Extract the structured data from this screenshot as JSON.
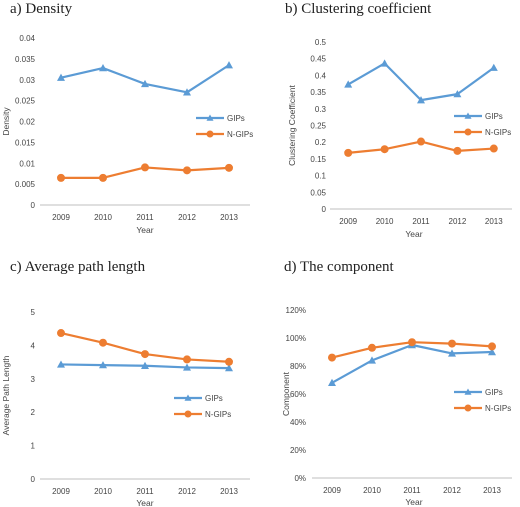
{
  "colors": {
    "GIPs": "#5b9bd5",
    "N-GIPs": "#ed7d31"
  },
  "chart_data": [
    {
      "type": "line",
      "title": "a) Density",
      "xlabel": "Year",
      "ylabel": "Density",
      "categories": [
        "2009",
        "2010",
        "2011",
        "2012",
        "2013"
      ],
      "ylim": [
        0,
        0.04
      ],
      "yticks": [
        "0",
        "0.005",
        "0.01",
        "0.015",
        "0.02",
        "0.025",
        "0.03",
        "0.035",
        "0.04"
      ],
      "ytick_values": [
        0,
        0.005,
        0.01,
        0.015,
        0.02,
        0.025,
        0.03,
        0.035,
        0.04
      ],
      "legend_position": "right",
      "series": [
        {
          "name": "GIPs",
          "marker": "triangle",
          "values": [
            0.0305,
            0.0328,
            0.029,
            0.027,
            0.0335
          ]
        },
        {
          "name": "N-GIPs",
          "marker": "circle",
          "values": [
            0.0065,
            0.0065,
            0.009,
            0.0083,
            0.0089
          ]
        }
      ]
    },
    {
      "type": "line",
      "title": "b) Clustering coefficient",
      "xlabel": "Year",
      "ylabel": "Clustering Coefficient",
      "categories": [
        "2009",
        "2010",
        "2011",
        "2012",
        "2013"
      ],
      "ylim": [
        0,
        0.5
      ],
      "yticks": [
        "0",
        "0.05",
        "0.1",
        "0.15",
        "0.2",
        "0.25",
        "0.3",
        "0.35",
        "0.4",
        "0.45",
        "0.5"
      ],
      "ytick_values": [
        0,
        0.05,
        0.1,
        0.15,
        0.2,
        0.25,
        0.3,
        0.35,
        0.4,
        0.45,
        0.5
      ],
      "legend_position": "right",
      "series": [
        {
          "name": "GIPs",
          "marker": "triangle",
          "values": [
            0.373,
            0.436,
            0.326,
            0.344,
            0.423
          ]
        },
        {
          "name": "N-GIPs",
          "marker": "circle",
          "values": [
            0.168,
            0.179,
            0.202,
            0.174,
            0.181
          ]
        }
      ]
    },
    {
      "type": "line",
      "title": "c) Average path length",
      "xlabel": "Year",
      "ylabel": "Average Path Length",
      "categories": [
        "2009",
        "2010",
        "2011",
        "2012",
        "2013"
      ],
      "ylim": [
        0,
        5
      ],
      "yticks": [
        "0",
        "1",
        "2",
        "3",
        "4",
        "5"
      ],
      "ytick_values": [
        0,
        1,
        2,
        3,
        4,
        5
      ],
      "legend_position": "right",
      "series": [
        {
          "name": "GIPs",
          "marker": "triangle",
          "values": [
            3.43,
            3.41,
            3.39,
            3.34,
            3.32
          ]
        },
        {
          "name": "N-GIPs",
          "marker": "circle",
          "values": [
            4.37,
            4.08,
            3.74,
            3.58,
            3.51
          ]
        }
      ]
    },
    {
      "type": "line",
      "title": "d) The component",
      "xlabel": "Year",
      "ylabel": "Component",
      "categories": [
        "2009",
        "2010",
        "2011",
        "2012",
        "2013"
      ],
      "ylim": [
        0,
        1.2
      ],
      "yticks": [
        "0%",
        "20%",
        "40%",
        "60%",
        "80%",
        "100%",
        "120%"
      ],
      "ytick_values": [
        0,
        0.2,
        0.4,
        0.6,
        0.8,
        1.0,
        1.2
      ],
      "legend_position": "right",
      "series": [
        {
          "name": "GIPs",
          "marker": "triangle",
          "values": [
            0.68,
            0.84,
            0.95,
            0.89,
            0.9
          ]
        },
        {
          "name": "N-GIPs",
          "marker": "circle",
          "values": [
            0.86,
            0.93,
            0.97,
            0.96,
            0.94
          ]
        }
      ]
    }
  ]
}
